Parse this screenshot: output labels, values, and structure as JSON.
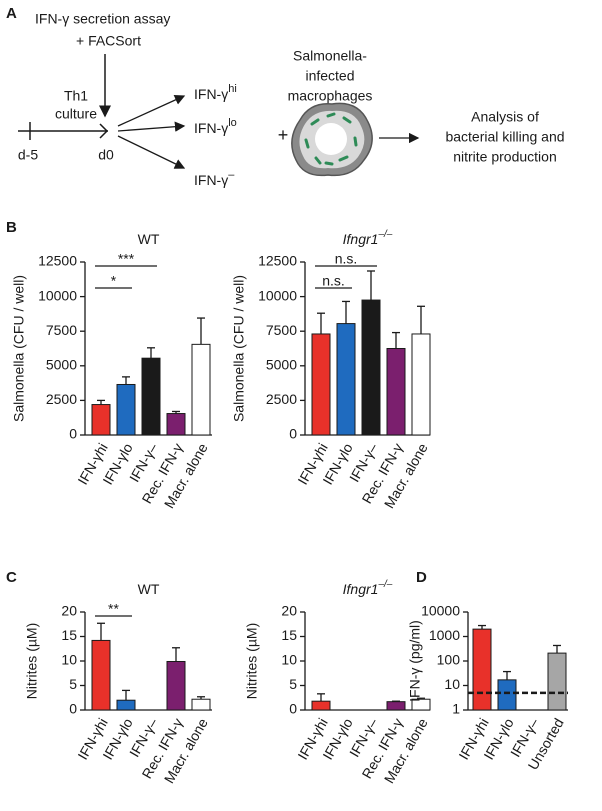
{
  "panel_a": {
    "label": "A",
    "assay": [
      "IFN-γ secretion assay",
      "+ FACSort"
    ],
    "culture": [
      "Th1",
      "culture"
    ],
    "days": [
      "d-5",
      "d0"
    ],
    "outputs": [
      {
        "text": "IFN-γ",
        "sup": "hi",
        "color": "#e8312a"
      },
      {
        "text": "IFN-γ",
        "sup": "lo",
        "color": "#1f6bbf"
      },
      {
        "text": "IFN-γ",
        "sup": "–",
        "color": "#1a1a1a"
      }
    ],
    "plus": "+",
    "macrophages": [
      "Salmonella-",
      "infected",
      "macrophages"
    ],
    "analysis": [
      "Analysis of",
      "bacterial killing and",
      "nitrite production"
    ]
  },
  "chart_data": [
    {
      "type": "bar",
      "panel": "B",
      "title": "WT",
      "ylabel": "Salmonella (CFU / well)",
      "categories": [
        "IFN-γhi",
        "IFN-γlo",
        "IFN-γ–",
        "Rec. IFN-γ",
        "Macr. alone"
      ],
      "values": [
        2200,
        3650,
        5550,
        1550,
        6550
      ],
      "errors": [
        300,
        550,
        750,
        150,
        1900
      ],
      "colors": [
        "#e8312a",
        "#1f6bbf",
        "#1a1a1a",
        "#7b1f6e",
        "#ffffff"
      ],
      "ylim": [
        0,
        12500
      ],
      "yticks": [
        0,
        2500,
        5000,
        7500,
        10000,
        12500
      ],
      "significance": [
        {
          "label": "***",
          "between": [
            0,
            2
          ]
        },
        {
          "label": "*",
          "between": [
            0,
            1
          ]
        }
      ]
    },
    {
      "type": "bar",
      "title": "Ifngr1",
      "title_sup": "–/–",
      "ylabel": "Salmonella (CFU / well)",
      "categories": [
        "IFN-γhi",
        "IFN-γlo",
        "IFN-γ–",
        "Rec. IFN-γ",
        "Macr. alone"
      ],
      "values": [
        7300,
        8050,
        9750,
        6250,
        7300
      ],
      "errors": [
        1500,
        1600,
        2100,
        1150,
        2000
      ],
      "colors": [
        "#e8312a",
        "#1f6bbf",
        "#1a1a1a",
        "#7b1f6e",
        "#ffffff"
      ],
      "ylim": [
        0,
        12500
      ],
      "yticks": [
        0,
        2500,
        5000,
        7500,
        10000,
        12500
      ],
      "significance": [
        {
          "label": "n.s.",
          "between": [
            0,
            2
          ]
        },
        {
          "label": "n.s.",
          "between": [
            0,
            1
          ]
        }
      ]
    },
    {
      "type": "bar",
      "panel": "C",
      "title": "WT",
      "ylabel": "Nitrites (µM)",
      "categories": [
        "IFN-γhi",
        "IFN-γlo",
        "IFN-γ–",
        "Rec. IFN-γ",
        "Macr. alone"
      ],
      "values": [
        14.2,
        2,
        null,
        9.9,
        2.2
      ],
      "errors": [
        3.5,
        2,
        null,
        2.8,
        0.5
      ],
      "colors": [
        "#e8312a",
        "#1f6bbf",
        "#1a1a1a",
        "#7b1f6e",
        "#ffffff"
      ],
      "ylim": [
        0,
        20
      ],
      "yticks": [
        0,
        5,
        10,
        15,
        20
      ],
      "significance": [
        {
          "label": "**",
          "between": [
            0,
            1
          ]
        }
      ]
    },
    {
      "type": "bar",
      "title": "Ifngr1",
      "title_sup": "–/–",
      "ylabel": "Nitrites (µM)",
      "categories": [
        "IFN-γhi",
        "IFN-γlo",
        "IFN-γ–",
        "Rec. IFN-γ",
        "Macr. alone"
      ],
      "values": [
        1.8,
        null,
        null,
        1.7,
        2.2
      ],
      "errors": [
        1.5,
        null,
        null,
        0.1,
        0.2
      ],
      "colors": [
        "#e8312a",
        "#1f6bbf",
        "#1a1a1a",
        "#7b1f6e",
        "#ffffff"
      ],
      "ylim": [
        0,
        20
      ],
      "yticks": [
        0,
        5,
        10,
        15,
        20
      ]
    },
    {
      "type": "bar",
      "panel": "D",
      "ylabel": "IFN-γ (pg/ml)",
      "categories": [
        "IFN-γhi",
        "IFN-γlo",
        "IFN-γ–",
        "Unsorted"
      ],
      "values": [
        2000,
        17,
        null,
        210
      ],
      "errors": [
        800,
        20,
        null,
        220
      ],
      "colors": [
        "#e8312a",
        "#1f6bbf",
        "#1a1a1a",
        "#a6a6a6"
      ],
      "ylim": [
        1,
        10000
      ],
      "yticks": [
        1,
        10,
        100,
        1000,
        10000
      ],
      "log": true,
      "threshold": 5
    }
  ]
}
